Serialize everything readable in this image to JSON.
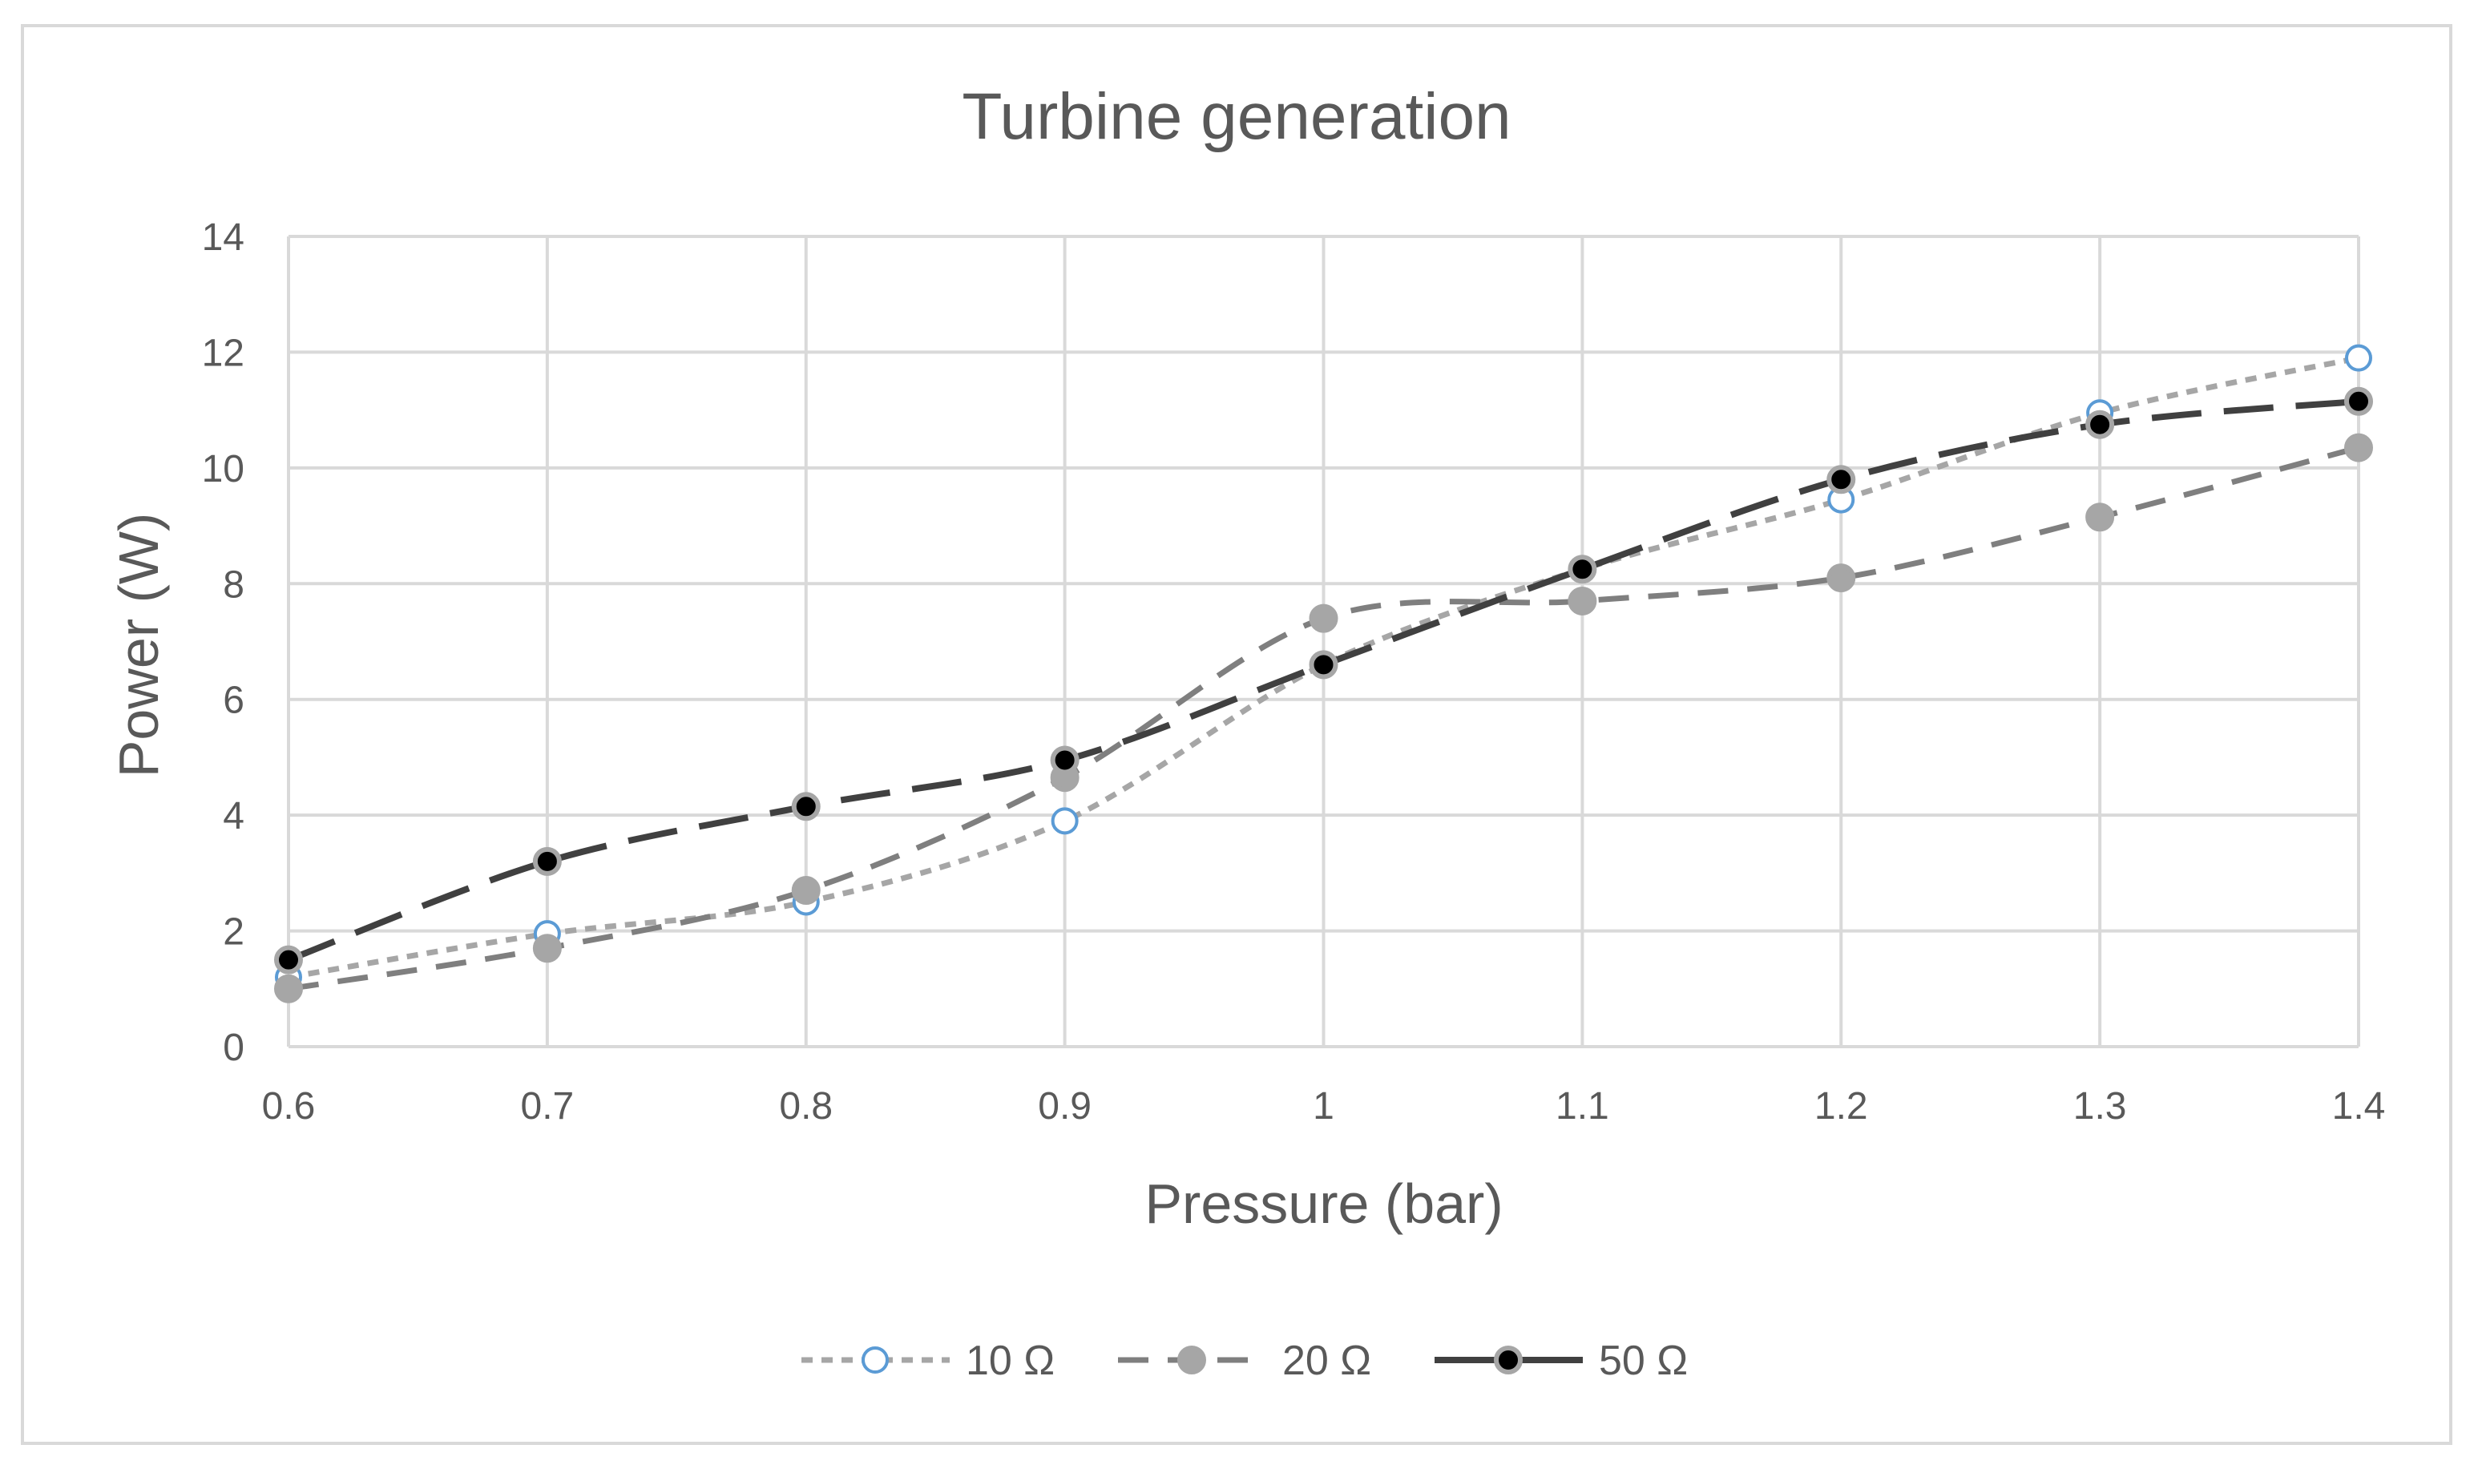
{
  "chart_data": {
    "type": "line",
    "title": "Turbine generation",
    "xlabel": "Pressure (bar)",
    "ylabel": "Power (W)",
    "x": [
      0.6,
      0.7,
      0.8,
      0.9,
      1.0,
      1.1,
      1.2,
      1.3,
      1.4
    ],
    "x_tick_labels": [
      "0.6",
      "0.7",
      "0.8",
      "0.9",
      "1",
      "1.1",
      "1.2",
      "1.3",
      "1.4"
    ],
    "y_tick_labels": [
      "0",
      "2",
      "4",
      "6",
      "8",
      "10",
      "12",
      "14"
    ],
    "xlim": [
      0.6,
      1.4
    ],
    "ylim": [
      0,
      14
    ],
    "grid": true,
    "legend_position": "bottom",
    "series": [
      {
        "name": "10 Ω",
        "values": [
          1.2,
          1.95,
          2.5,
          3.9,
          6.6,
          8.25,
          9.45,
          10.95,
          11.9
        ],
        "line_color": "#a6a6a6",
        "marker_fill": "#ffffff",
        "marker_stroke": "#5b9bd5",
        "dash": "short"
      },
      {
        "name": "20 Ω",
        "values": [
          1.0,
          1.7,
          2.7,
          4.65,
          7.4,
          7.7,
          8.1,
          9.15,
          10.35
        ],
        "line_color": "#7f7f7f",
        "marker_fill": "#a6a6a6",
        "marker_stroke": "#a6a6a6",
        "dash": "medium"
      },
      {
        "name": "50 Ω",
        "values": [
          1.5,
          3.2,
          4.15,
          4.95,
          6.6,
          8.25,
          9.8,
          10.75,
          11.15
        ],
        "line_color": "#404040",
        "marker_fill": "#000000",
        "marker_stroke": "#a6a6a6",
        "dash": "long"
      }
    ]
  }
}
